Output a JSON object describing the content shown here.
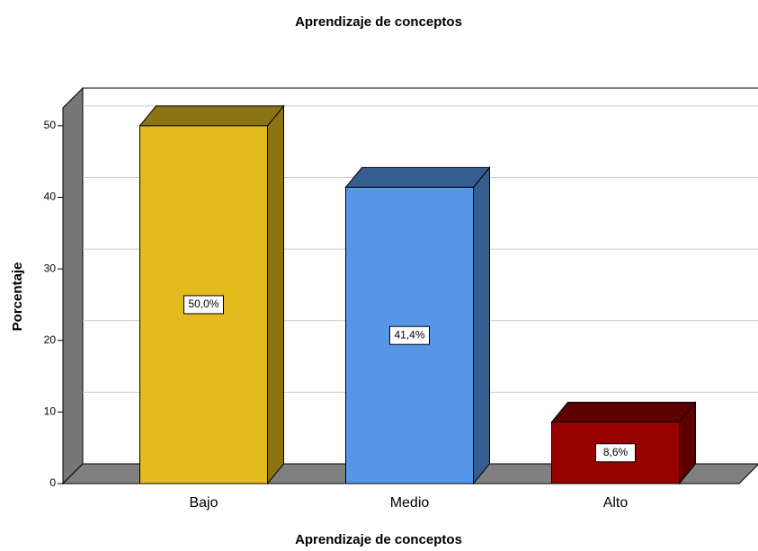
{
  "chart_data": {
    "type": "bar3d",
    "title": "Aprendizaje de conceptos",
    "x_label": "Aprendizaje de conceptos",
    "y_label": "Porcentaje",
    "categories": [
      "Bajo",
      "Medio",
      "Alto"
    ],
    "values": [
      50.0,
      41.4,
      8.6
    ],
    "value_labels": [
      "50,0%",
      "41,4%",
      "8,6%"
    ],
    "colors": [
      "#e3bb1f",
      "#5596e6",
      "#990000"
    ],
    "ylim": [
      0,
      52.5
    ],
    "yticks": [
      0,
      10,
      20,
      30,
      40,
      50
    ],
    "grid": true
  }
}
